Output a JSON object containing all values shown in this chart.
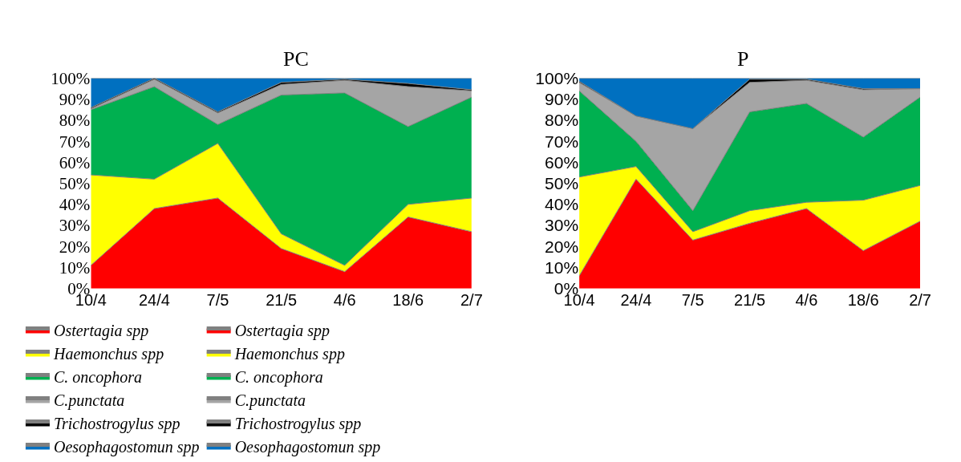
{
  "chart_data": [
    {
      "type": "area",
      "title": "PC",
      "stacked": true,
      "legend": "bottom",
      "categories": [
        "10/4",
        "24/4",
        "7/5",
        "21/5",
        "4/6",
        "18/6",
        "2/7"
      ],
      "ylim": [
        0,
        100
      ],
      "yticks": [
        {
          "value": 0,
          "label": "0%"
        },
        {
          "value": 10,
          "label": "10%"
        },
        {
          "value": 20,
          "label": "20%"
        },
        {
          "value": 30,
          "label": "30%"
        },
        {
          "value": 40,
          "label": "40%"
        },
        {
          "value": 50,
          "label": "50%"
        },
        {
          "value": 60,
          "label": "60%"
        },
        {
          "value": 70,
          "label": "70%"
        },
        {
          "value": 80,
          "label": "80%"
        },
        {
          "value": 90,
          "label": "90%"
        },
        {
          "value": 100,
          "label": "100%"
        }
      ],
      "series": [
        {
          "name": "Ostertagia spp",
          "color": "#ff0000",
          "values": [
            11,
            38,
            43,
            19,
            8,
            34,
            27
          ]
        },
        {
          "name": "Haemonchus spp",
          "color": "#ffff00",
          "values": [
            43,
            14,
            26,
            7,
            3,
            6,
            16
          ]
        },
        {
          "name": "C. oncophora",
          "color": "#00b050",
          "values": [
            31,
            44,
            9,
            66,
            82,
            37,
            48
          ]
        },
        {
          "name": "C.punctata",
          "color": "#a5a5a5",
          "values": [
            0.5,
            3.5,
            5.5,
            5,
            6,
            19,
            3
          ]
        },
        {
          "name": "Trichostrogylus spp",
          "color": "#000000",
          "values": [
            0.5,
            0.5,
            0.5,
            1,
            0.5,
            1.5,
            0.5
          ]
        },
        {
          "name": "Oesophagostomun spp",
          "color": "#0070c0",
          "values": [
            14,
            0,
            16,
            2,
            0.5,
            2.5,
            5.5
          ]
        }
      ]
    },
    {
      "type": "area",
      "title": "P",
      "stacked": true,
      "legend": "bottom",
      "categories": [
        "10/4",
        "24/4",
        "7/5",
        "21/5",
        "4/6",
        "18/6",
        "2/7"
      ],
      "ylim": [
        0,
        100
      ],
      "yticks": [
        {
          "value": 0,
          "label": "0%"
        },
        {
          "value": 10,
          "label": "10%"
        },
        {
          "value": 20,
          "label": "20%"
        },
        {
          "value": 30,
          "label": "30%"
        },
        {
          "value": 40,
          "label": "40%"
        },
        {
          "value": 50,
          "label": "50%"
        },
        {
          "value": 60,
          "label": "60%"
        },
        {
          "value": 70,
          "label": "70%"
        },
        {
          "value": 80,
          "label": "80%"
        },
        {
          "value": 90,
          "label": "90%"
        },
        {
          "value": 100,
          "label": "100%"
        }
      ],
      "series": [
        {
          "name": "Ostertagia spp",
          "color": "#ff0000",
          "values": [
            6,
            52,
            23,
            31,
            38,
            18,
            32
          ]
        },
        {
          "name": "Haemonchus spp",
          "color": "#ffff00",
          "values": [
            47,
            6,
            4,
            6,
            3,
            24,
            17
          ]
        },
        {
          "name": "C. oncophora",
          "color": "#00b050",
          "values": [
            41,
            12,
            10,
            47,
            47,
            30,
            42
          ]
        },
        {
          "name": "C.punctata",
          "color": "#a5a5a5",
          "values": [
            4,
            12,
            39,
            14,
            11,
            22.5,
            4
          ]
        },
        {
          "name": "Trichostrogylus spp",
          "color": "#000000",
          "values": [
            0.5,
            0,
            0,
            1.5,
            0.5,
            0.5,
            0
          ]
        },
        {
          "name": "Oesophagostomun spp",
          "color": "#0070c0",
          "values": [
            1.5,
            18,
            24,
            0.5,
            0.5,
            5,
            5
          ]
        }
      ]
    }
  ]
}
